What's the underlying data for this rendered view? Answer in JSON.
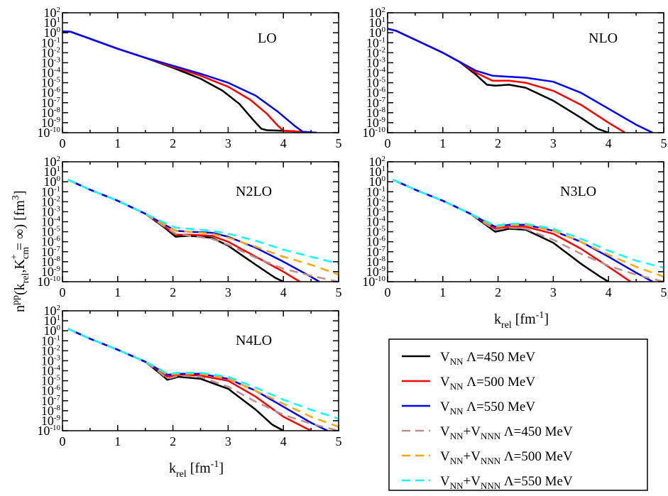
{
  "figure": {
    "ylabel": {
      "n": "n",
      "pp": "pp",
      "open": "(k",
      "rel": "rel",
      "mid": ",K",
      "cm": "cm",
      "plus": "+",
      "eqinf": " = ∞) [fm",
      "cube": "3",
      "close": "]"
    },
    "xlabel": {
      "k": "k",
      "rel": "rel",
      "unit": " [fm",
      "exp": "-1",
      "close": "]"
    }
  },
  "legend": {
    "entries": [
      {
        "parts": [
          "V",
          "NN",
          " Λ=450 MeV"
        ],
        "color": "#000000",
        "dashed": false
      },
      {
        "parts": [
          "V",
          "NN",
          " Λ=500 MeV"
        ],
        "color": "#ff0000",
        "dashed": false
      },
      {
        "parts": [
          "V",
          "NN",
          " Λ=550 MeV"
        ],
        "color": "#0000ff",
        "dashed": false
      },
      {
        "parts": [
          "V",
          "NN",
          "+V",
          "NNN",
          " Λ=450 MeV"
        ],
        "color": "#bc8f8f",
        "dashed": true
      },
      {
        "parts": [
          "V",
          "NN",
          "+V",
          "NNN",
          " Λ=500 MeV"
        ],
        "color": "#ffa500",
        "dashed": true
      },
      {
        "parts": [
          "V",
          "NN",
          "+V",
          "NNN",
          " Λ=550 MeV"
        ],
        "color": "#00ffff",
        "dashed": true
      }
    ]
  },
  "chart_data": [
    {
      "type": "line",
      "label": "LO",
      "xlim": [
        0,
        5
      ],
      "ylim_exp": [
        -10,
        2
      ],
      "yscale": "log",
      "xticks": [
        "0",
        "1",
        "2",
        "3",
        "4",
        "5"
      ],
      "yticks": [
        "10",
        "10",
        "10",
        "10",
        "10",
        "10",
        "10",
        "10",
        "10",
        "10",
        "10",
        "10",
        "10"
      ],
      "ytick_exponents": [
        "2",
        "1",
        "0",
        "-1",
        "-2",
        "-3",
        "-4",
        "-5",
        "-6",
        "-7",
        "-8",
        "-9",
        "-10"
      ],
      "series": [
        {
          "color": "#000000",
          "dashed": false,
          "x": [
            0,
            0.15,
            0.5,
            1,
            1.5,
            2,
            2.5,
            2.9,
            3.2,
            3.45,
            3.6,
            3.7,
            4.2,
            4.4
          ],
          "y": [
            0.15,
            0.1,
            -0.6,
            -1.6,
            -2.5,
            -3.5,
            -4.6,
            -5.8,
            -7.1,
            -8.7,
            -9.6,
            -9.75,
            -9.85,
            -10
          ]
        },
        {
          "color": "#ff0000",
          "dashed": false,
          "x": [
            0,
            0.15,
            0.5,
            1,
            1.5,
            2,
            2.5,
            3,
            3.4,
            3.7,
            3.9,
            4.0,
            4.3,
            4.6
          ],
          "y": [
            0.15,
            0.1,
            -0.6,
            -1.6,
            -2.5,
            -3.4,
            -4.3,
            -5.4,
            -6.7,
            -8.1,
            -9.3,
            -9.8,
            -9.9,
            -10
          ]
        },
        {
          "color": "#0000ff",
          "dashed": false,
          "x": [
            0,
            0.15,
            0.5,
            1,
            1.5,
            2,
            2.5,
            3,
            3.5,
            3.9,
            4.2,
            4.35,
            4.6
          ],
          "y": [
            0.15,
            0.1,
            -0.6,
            -1.6,
            -2.5,
            -3.3,
            -4.1,
            -5.0,
            -6.3,
            -7.9,
            -9.3,
            -9.9,
            -10
          ]
        }
      ]
    },
    {
      "type": "line",
      "label": "NLO",
      "xlim": [
        0,
        5
      ],
      "ylim_exp": [
        -10,
        2
      ],
      "yscale": "log",
      "xticks": [
        "0",
        "1",
        "2",
        "3",
        "4",
        "5"
      ],
      "yticks": [
        "10",
        "10",
        "10",
        "10",
        "10",
        "10",
        "10",
        "10",
        "10",
        "10",
        "10",
        "10",
        "10"
      ],
      "ytick_exponents": [
        "2",
        "1",
        "0",
        "-1",
        "-2",
        "-3",
        "-4",
        "-5",
        "-6",
        "-7",
        "-8",
        "-9",
        "-10"
      ],
      "series": [
        {
          "color": "#000000",
          "dashed": false,
          "x": [
            0,
            0.15,
            0.5,
            1,
            1.3,
            1.6,
            1.8,
            1.95,
            2.2,
            2.5,
            3,
            3.5,
            3.8,
            4.0
          ],
          "y": [
            0.4,
            0.2,
            -0.7,
            -2.0,
            -2.9,
            -4.2,
            -5.2,
            -5.3,
            -5.2,
            -5.5,
            -6.8,
            -8.5,
            -9.6,
            -10
          ]
        },
        {
          "color": "#ff0000",
          "dashed": false,
          "x": [
            0,
            0.15,
            0.5,
            1,
            1.3,
            1.6,
            1.9,
            2.2,
            2.5,
            3,
            3.5,
            4.0,
            4.3
          ],
          "y": [
            0.4,
            0.2,
            -0.7,
            -2.0,
            -2.9,
            -4.0,
            -4.8,
            -4.8,
            -5.0,
            -5.8,
            -7.2,
            -9.0,
            -10
          ]
        },
        {
          "color": "#0000ff",
          "dashed": false,
          "x": [
            0,
            0.15,
            0.5,
            1,
            1.3,
            1.6,
            1.9,
            2.2,
            2.5,
            3,
            3.5,
            4.0,
            4.5,
            4.8
          ],
          "y": [
            0.4,
            0.2,
            -0.7,
            -2.0,
            -2.9,
            -3.8,
            -4.3,
            -4.4,
            -4.5,
            -4.9,
            -6.0,
            -7.6,
            -9.2,
            -10
          ]
        }
      ]
    },
    {
      "type": "line",
      "label": "N2LO",
      "xlim": [
        0,
        5
      ],
      "ylim_exp": [
        -10,
        2
      ],
      "yscale": "log",
      "xticks": [
        "0",
        "1",
        "2",
        "3",
        "4",
        "5"
      ],
      "yticks": [
        "10",
        "10",
        "10",
        "10",
        "10",
        "10",
        "10",
        "10",
        "10",
        "10",
        "10",
        "10",
        "10"
      ],
      "ytick_exponents": [
        "2",
        "1",
        "0",
        "-1",
        "-2",
        "-3",
        "-4",
        "-5",
        "-6",
        "-7",
        "-8",
        "-9",
        "-10"
      ],
      "series": [
        {
          "color": "#000000",
          "dashed": false,
          "x": [
            0.1,
            0.5,
            1,
            1.5,
            1.85,
            2.05,
            2.3,
            2.7,
            3,
            3.5,
            3.85,
            4.0
          ],
          "y": [
            0.2,
            -0.8,
            -1.9,
            -3.2,
            -4.6,
            -5.5,
            -5.4,
            -5.6,
            -6.4,
            -8.3,
            -9.6,
            -10
          ]
        },
        {
          "color": "#ff0000",
          "dashed": false,
          "x": [
            0.1,
            0.5,
            1,
            1.5,
            1.85,
            2.05,
            2.3,
            2.7,
            3,
            3.5,
            4,
            4.3
          ],
          "y": [
            0.2,
            -0.8,
            -1.9,
            -3.2,
            -4.5,
            -5.3,
            -5.3,
            -5.4,
            -6.0,
            -7.5,
            -9.0,
            -10
          ]
        },
        {
          "color": "#0000ff",
          "dashed": false,
          "x": [
            0.1,
            0.5,
            1,
            1.5,
            1.85,
            2.05,
            2.3,
            2.7,
            3,
            3.5,
            4,
            4.5,
            4.65
          ],
          "y": [
            0.2,
            -0.8,
            -1.9,
            -3.2,
            -4.3,
            -4.9,
            -5.0,
            -5.1,
            -5.5,
            -6.6,
            -8.0,
            -9.5,
            -10
          ]
        },
        {
          "color": "#bc8f8f",
          "dashed": true,
          "x": [
            0.1,
            0.5,
            1,
            1.5,
            1.85,
            2.05,
            2.3,
            2.7,
            3,
            3.5,
            4,
            4.5,
            5
          ],
          "y": [
            0.2,
            -0.8,
            -1.9,
            -3.2,
            -4.5,
            -5.2,
            -5.4,
            -5.7,
            -6.3,
            -7.6,
            -8.7,
            -9.4,
            -10
          ]
        },
        {
          "color": "#ffa500",
          "dashed": true,
          "x": [
            0.1,
            0.5,
            1,
            1.5,
            1.85,
            2.05,
            2.3,
            2.7,
            3,
            3.5,
            4,
            4.5,
            5
          ],
          "y": [
            0.2,
            -0.8,
            -1.9,
            -3.2,
            -4.3,
            -4.9,
            -5.0,
            -5.2,
            -5.6,
            -6.5,
            -7.5,
            -8.3,
            -9.3
          ]
        },
        {
          "color": "#00ffff",
          "dashed": true,
          "x": [
            0.1,
            0.5,
            1,
            1.5,
            1.85,
            2.05,
            2.3,
            2.7,
            3,
            3.5,
            4,
            4.5,
            5
          ],
          "y": [
            0.2,
            -0.8,
            -1.9,
            -3.2,
            -4.1,
            -4.6,
            -4.7,
            -4.9,
            -5.2,
            -5.9,
            -6.8,
            -7.5,
            -8.2
          ]
        }
      ]
    },
    {
      "type": "line",
      "label": "N3LO",
      "xlim": [
        0,
        5
      ],
      "ylim_exp": [
        -10,
        2
      ],
      "yscale": "log",
      "xticks": [
        "0",
        "1",
        "2",
        "3",
        "4",
        "5"
      ],
      "yticks": [
        "10",
        "10",
        "10",
        "10",
        "10",
        "10",
        "10",
        "10",
        "10",
        "10",
        "10",
        "10",
        "10"
      ],
      "ytick_exponents": [
        "2",
        "1",
        "0",
        "-1",
        "-2",
        "-3",
        "-4",
        "-5",
        "-6",
        "-7",
        "-8",
        "-9",
        "-10"
      ],
      "series": [
        {
          "color": "#000000",
          "dashed": false,
          "x": [
            0.1,
            0.5,
            1,
            1.5,
            1.8,
            1.95,
            2.2,
            2.5,
            3,
            3.5,
            3.85,
            4.0
          ],
          "y": [
            0.2,
            -0.8,
            -1.9,
            -3.2,
            -4.4,
            -5.0,
            -4.7,
            -4.8,
            -6.1,
            -8.2,
            -9.5,
            -10
          ]
        },
        {
          "color": "#ff0000",
          "dashed": false,
          "x": [
            0.1,
            0.5,
            1,
            1.5,
            1.8,
            1.95,
            2.2,
            2.5,
            3,
            3.5,
            4,
            4.4
          ],
          "y": [
            0.2,
            -0.8,
            -1.9,
            -3.2,
            -4.2,
            -4.7,
            -4.5,
            -4.5,
            -5.2,
            -6.7,
            -8.5,
            -10
          ]
        },
        {
          "color": "#0000ff",
          "dashed": false,
          "x": [
            0.1,
            0.5,
            1,
            1.5,
            1.8,
            1.95,
            2.2,
            2.5,
            3,
            3.5,
            4,
            4.5,
            4.8
          ],
          "y": [
            0.2,
            -0.8,
            -1.9,
            -3.2,
            -4.1,
            -4.5,
            -4.3,
            -4.3,
            -4.9,
            -6.0,
            -7.5,
            -9.1,
            -10
          ]
        },
        {
          "color": "#bc8f8f",
          "dashed": true,
          "x": [
            0.1,
            0.5,
            1,
            1.5,
            1.8,
            1.95,
            2.2,
            2.5,
            3,
            3.5,
            4,
            4.5,
            5
          ],
          "y": [
            0.2,
            -0.8,
            -1.9,
            -3.2,
            -4.3,
            -4.8,
            -4.6,
            -4.7,
            -5.8,
            -7.2,
            -8.4,
            -9.3,
            -10
          ]
        },
        {
          "color": "#ffa500",
          "dashed": true,
          "x": [
            0.1,
            0.5,
            1,
            1.5,
            1.8,
            1.95,
            2.2,
            2.5,
            3,
            3.5,
            4,
            4.5,
            5
          ],
          "y": [
            0.2,
            -0.8,
            -1.9,
            -3.2,
            -4.1,
            -4.5,
            -4.3,
            -4.3,
            -4.9,
            -6.0,
            -7.3,
            -8.5,
            -9.5
          ]
        },
        {
          "color": "#00ffff",
          "dashed": true,
          "x": [
            0.1,
            0.5,
            1,
            1.5,
            1.8,
            1.95,
            2.2,
            2.5,
            3,
            3.5,
            4,
            4.5,
            5
          ],
          "y": [
            0.2,
            -0.8,
            -1.9,
            -3.2,
            -4.0,
            -4.4,
            -4.2,
            -4.2,
            -4.7,
            -5.7,
            -6.9,
            -7.9,
            -8.6
          ]
        }
      ]
    },
    {
      "type": "line",
      "label": "N4LO",
      "xlim": [
        0,
        5
      ],
      "ylim_exp": [
        -10,
        2
      ],
      "yscale": "log",
      "xticks": [
        "0",
        "1",
        "2",
        "3",
        "4",
        "5"
      ],
      "yticks": [
        "10",
        "10",
        "10",
        "10",
        "10",
        "10",
        "10",
        "10",
        "10",
        "10",
        "10",
        "10",
        "10"
      ],
      "ytick_exponents": [
        "2",
        "1",
        "0",
        "-1",
        "-2",
        "-3",
        "-4",
        "-5",
        "-6",
        "-7",
        "-8",
        "-9",
        "-10"
      ],
      "series": [
        {
          "color": "#000000",
          "dashed": false,
          "x": [
            0.1,
            0.5,
            1,
            1.5,
            1.75,
            1.9,
            2.1,
            2.5,
            3,
            3.5,
            3.8,
            4.0
          ],
          "y": [
            0.2,
            -0.8,
            -1.9,
            -3.1,
            -4.2,
            -4.9,
            -4.6,
            -4.8,
            -5.8,
            -7.9,
            -9.4,
            -10
          ]
        },
        {
          "color": "#ff0000",
          "dashed": false,
          "x": [
            0.1,
            0.5,
            1,
            1.5,
            1.75,
            1.9,
            2.1,
            2.5,
            3,
            3.5,
            4,
            4.5
          ],
          "y": [
            0.2,
            -0.8,
            -1.9,
            -3.1,
            -4.0,
            -4.6,
            -4.4,
            -4.5,
            -5.0,
            -6.6,
            -8.6,
            -10
          ]
        },
        {
          "color": "#0000ff",
          "dashed": false,
          "x": [
            0.1,
            0.5,
            1,
            1.5,
            1.75,
            1.9,
            2.1,
            2.5,
            3,
            3.5,
            4,
            4.5,
            4.8
          ],
          "y": [
            0.2,
            -0.8,
            -1.9,
            -3.1,
            -3.9,
            -4.4,
            -4.3,
            -4.3,
            -4.8,
            -6.0,
            -7.6,
            -9.2,
            -10
          ]
        },
        {
          "color": "#bc8f8f",
          "dashed": true,
          "x": [
            0.1,
            0.5,
            1,
            1.5,
            1.75,
            1.9,
            2.1,
            2.5,
            3,
            3.5,
            4,
            4.5,
            5
          ],
          "y": [
            0.2,
            -0.8,
            -1.9,
            -3.1,
            -4.1,
            -4.8,
            -4.5,
            -4.6,
            -5.6,
            -7.1,
            -8.4,
            -9.3,
            -10
          ]
        },
        {
          "color": "#ffa500",
          "dashed": true,
          "x": [
            0.1,
            0.5,
            1,
            1.5,
            1.75,
            1.9,
            2.1,
            2.5,
            3,
            3.5,
            4,
            4.5,
            5
          ],
          "y": [
            0.2,
            -0.8,
            -1.9,
            -3.1,
            -3.9,
            -4.4,
            -4.3,
            -4.3,
            -4.8,
            -6.0,
            -7.3,
            -8.6,
            -9.6
          ]
        },
        {
          "color": "#00ffff",
          "dashed": true,
          "x": [
            0.1,
            0.5,
            1,
            1.5,
            1.75,
            1.9,
            2.1,
            2.5,
            3,
            3.5,
            4,
            4.5,
            5
          ],
          "y": [
            0.2,
            -0.8,
            -1.9,
            -3.1,
            -3.8,
            -4.3,
            -4.2,
            -4.2,
            -4.6,
            -5.7,
            -6.9,
            -7.9,
            -8.8
          ]
        }
      ]
    }
  ]
}
